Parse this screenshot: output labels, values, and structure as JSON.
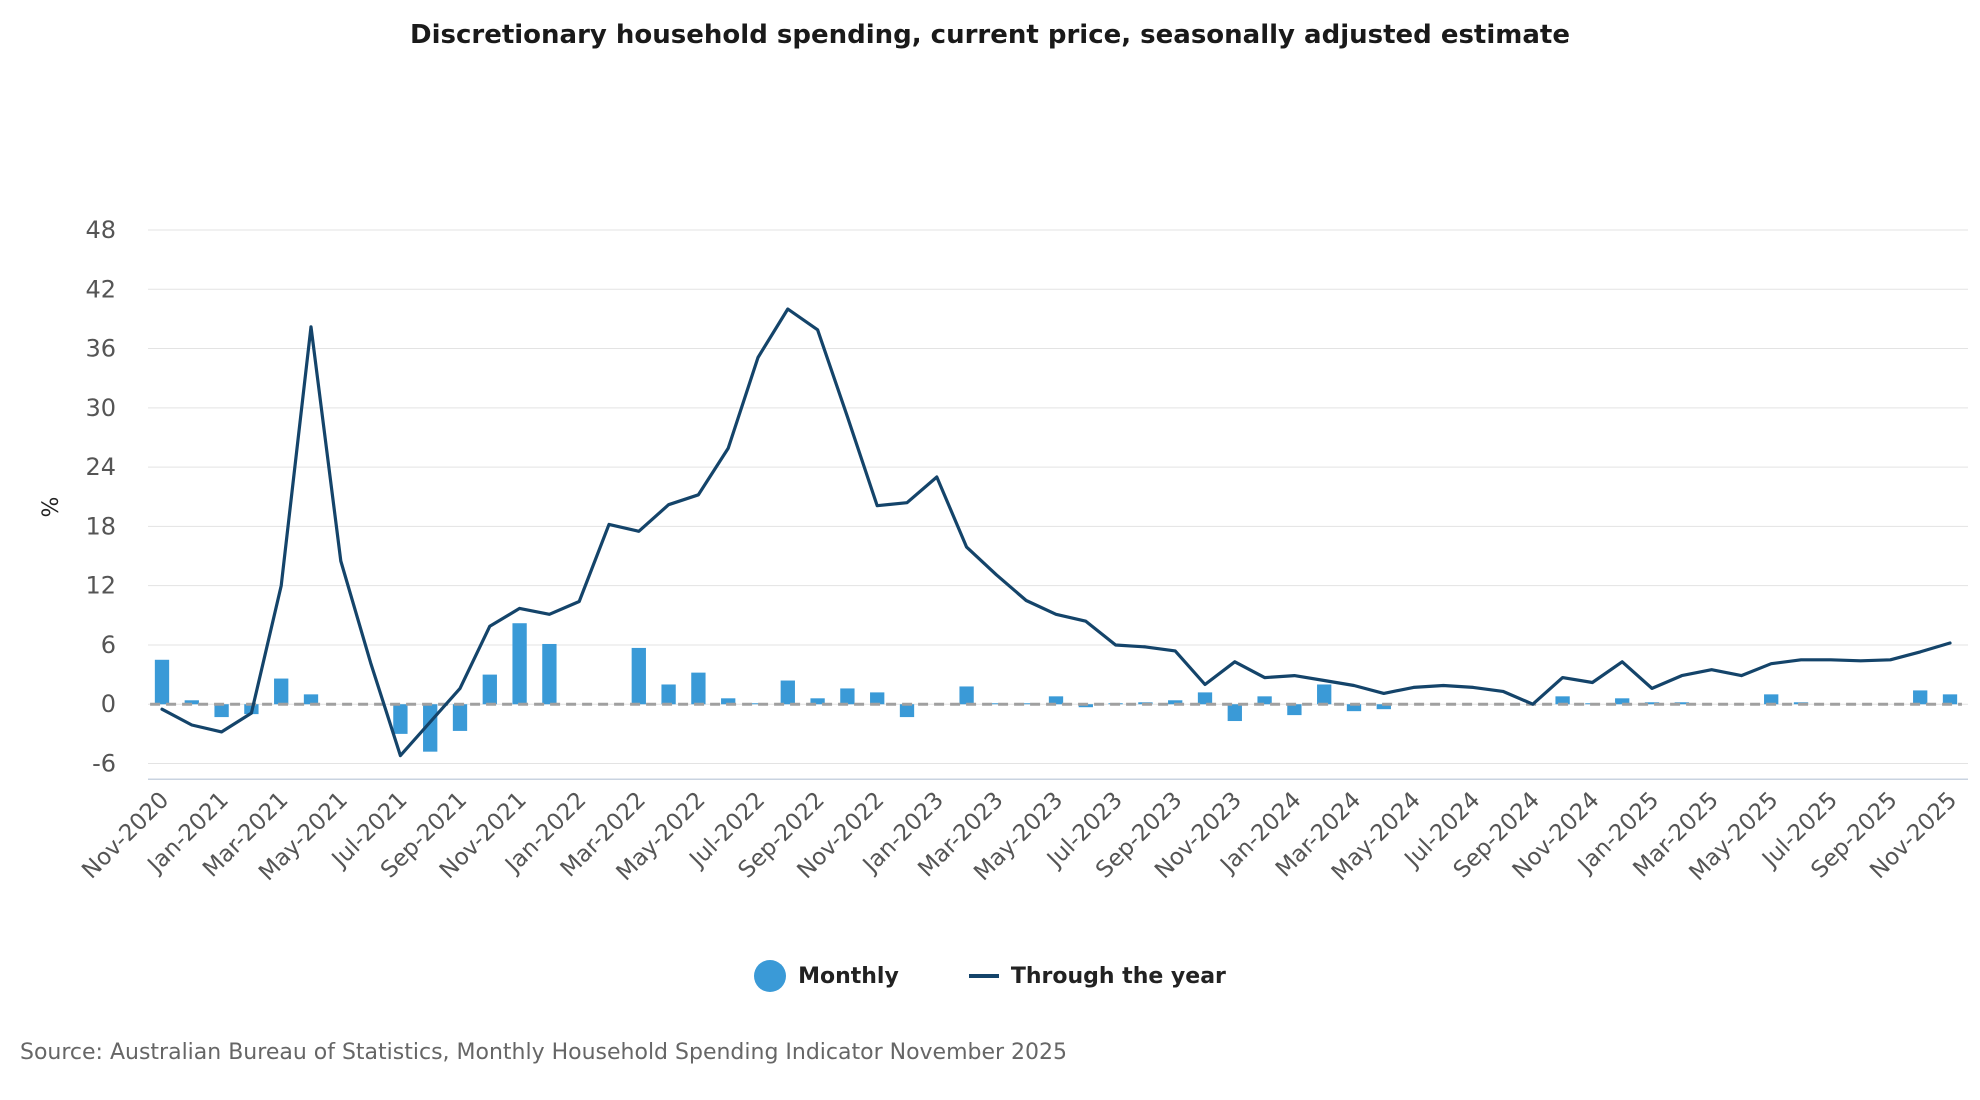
{
  "chart_data": {
    "type": "bar+line",
    "title": "Discretionary household spending, current price, seasonally adjusted estimate",
    "ylabel": "%",
    "xlabel": "",
    "ylim": [
      -8,
      48
    ],
    "yticks": [
      48,
      42,
      36,
      30,
      24,
      18,
      12,
      6,
      0,
      -6
    ],
    "x": [
      "Nov-2020",
      "Dec-2020",
      "Jan-2021",
      "Feb-2021",
      "Mar-2021",
      "Apr-2021",
      "May-2021",
      "Jun-2021",
      "Jul-2021",
      "Aug-2021",
      "Sep-2021",
      "Oct-2021",
      "Nov-2021",
      "Dec-2021",
      "Jan-2022",
      "Feb-2022",
      "Mar-2022",
      "Apr-2022",
      "May-2022",
      "Jun-2022",
      "Jul-2022",
      "Aug-2022",
      "Sep-2022",
      "Oct-2022",
      "Nov-2022",
      "Dec-2022",
      "Jan-2023",
      "Feb-2023",
      "Mar-2023",
      "Apr-2023",
      "May-2023",
      "Jun-2023",
      "Jul-2023",
      "Aug-2023",
      "Sep-2023",
      "Oct-2023",
      "Nov-2023",
      "Dec-2023",
      "Jan-2024",
      "Feb-2024",
      "Mar-2024",
      "Apr-2024",
      "May-2024",
      "Jun-2024",
      "Jul-2024",
      "Aug-2024",
      "Sep-2024",
      "Oct-2024",
      "Nov-2024",
      "Dec-2024",
      "Jan-2025",
      "Feb-2025",
      "Mar-2025",
      "Apr-2025",
      "May-2025",
      "Jun-2025",
      "Jul-2025",
      "Aug-2025",
      "Sep-2025",
      "Oct-2025",
      "Nov-2025"
    ],
    "x_tick_labels": [
      "Nov-2020",
      "Jan-2021",
      "Mar-2021",
      "May-2021",
      "Jul-2021",
      "Sep-2021",
      "Nov-2021",
      "Jan-2022",
      "Mar-2022",
      "May-2022",
      "Jul-2022",
      "Sep-2022",
      "Nov-2022",
      "Jan-2023",
      "Mar-2023",
      "May-2023",
      "Jul-2023",
      "Sep-2023",
      "Nov-2023",
      "Jan-2024",
      "Mar-2024",
      "May-2024",
      "Jul-2024",
      "Sep-2024",
      "Nov-2024",
      "Jan-2025",
      "Mar-2025",
      "May-2025",
      "Jul-2025",
      "Sep-2025",
      "Nov-2025"
    ],
    "series": [
      {
        "name": "Monthly",
        "type": "bar",
        "color": "#3a9ad7",
        "values": [
          4.5,
          0.4,
          -1.3,
          -1.0,
          2.6,
          1.0,
          0.0,
          0.0,
          -3.0,
          -4.8,
          -2.7,
          3.0,
          8.2,
          6.1,
          0.0,
          0.0,
          5.7,
          2.0,
          3.2,
          0.6,
          0.1,
          2.4,
          0.6,
          1.6,
          1.2,
          -1.3,
          0.0,
          1.8,
          0.1,
          0.1,
          0.8,
          -0.3,
          0.1,
          0.2,
          0.4,
          1.2,
          -1.7,
          0.8,
          -1.1,
          2.0,
          -0.7,
          -0.5,
          0.0,
          0.0,
          0.0,
          0.0,
          0.0,
          0.8,
          0.1,
          0.6,
          0.2,
          0.2,
          0.0,
          0.0,
          1.0,
          0.2,
          0.0,
          0.0,
          0.0,
          1.4,
          1.0
        ]
      },
      {
        "name": "Through the year",
        "type": "line",
        "color": "#14446a",
        "values": [
          -0.5,
          -2.1,
          -2.8,
          -0.9,
          12.0,
          38.2,
          14.5,
          4.2,
          -5.2,
          -1.8,
          1.6,
          7.9,
          9.7,
          9.1,
          10.4,
          18.2,
          17.5,
          20.2,
          21.2,
          25.9,
          35.1,
          40.0,
          37.9,
          29.1,
          20.1,
          20.4,
          23.0,
          15.9,
          13.1,
          10.5,
          9.1,
          8.4,
          6.0,
          5.8,
          5.4,
          2.0,
          4.3,
          2.7,
          2.9,
          2.4,
          1.9,
          1.1,
          1.7,
          1.9,
          1.7,
          1.3,
          0.0,
          2.7,
          2.2,
          4.3,
          1.6,
          2.9,
          3.5,
          2.9,
          4.1,
          4.5,
          4.5,
          4.4,
          4.5,
          5.3,
          6.2
        ]
      }
    ],
    "legend": [
      "Monthly",
      "Through the year"
    ],
    "legend_position": "bottom-center",
    "grid": "horizontal"
  },
  "source_note": "Source: Australian Bureau of Statistics, Monthly Household Spending Indicator November 2025"
}
